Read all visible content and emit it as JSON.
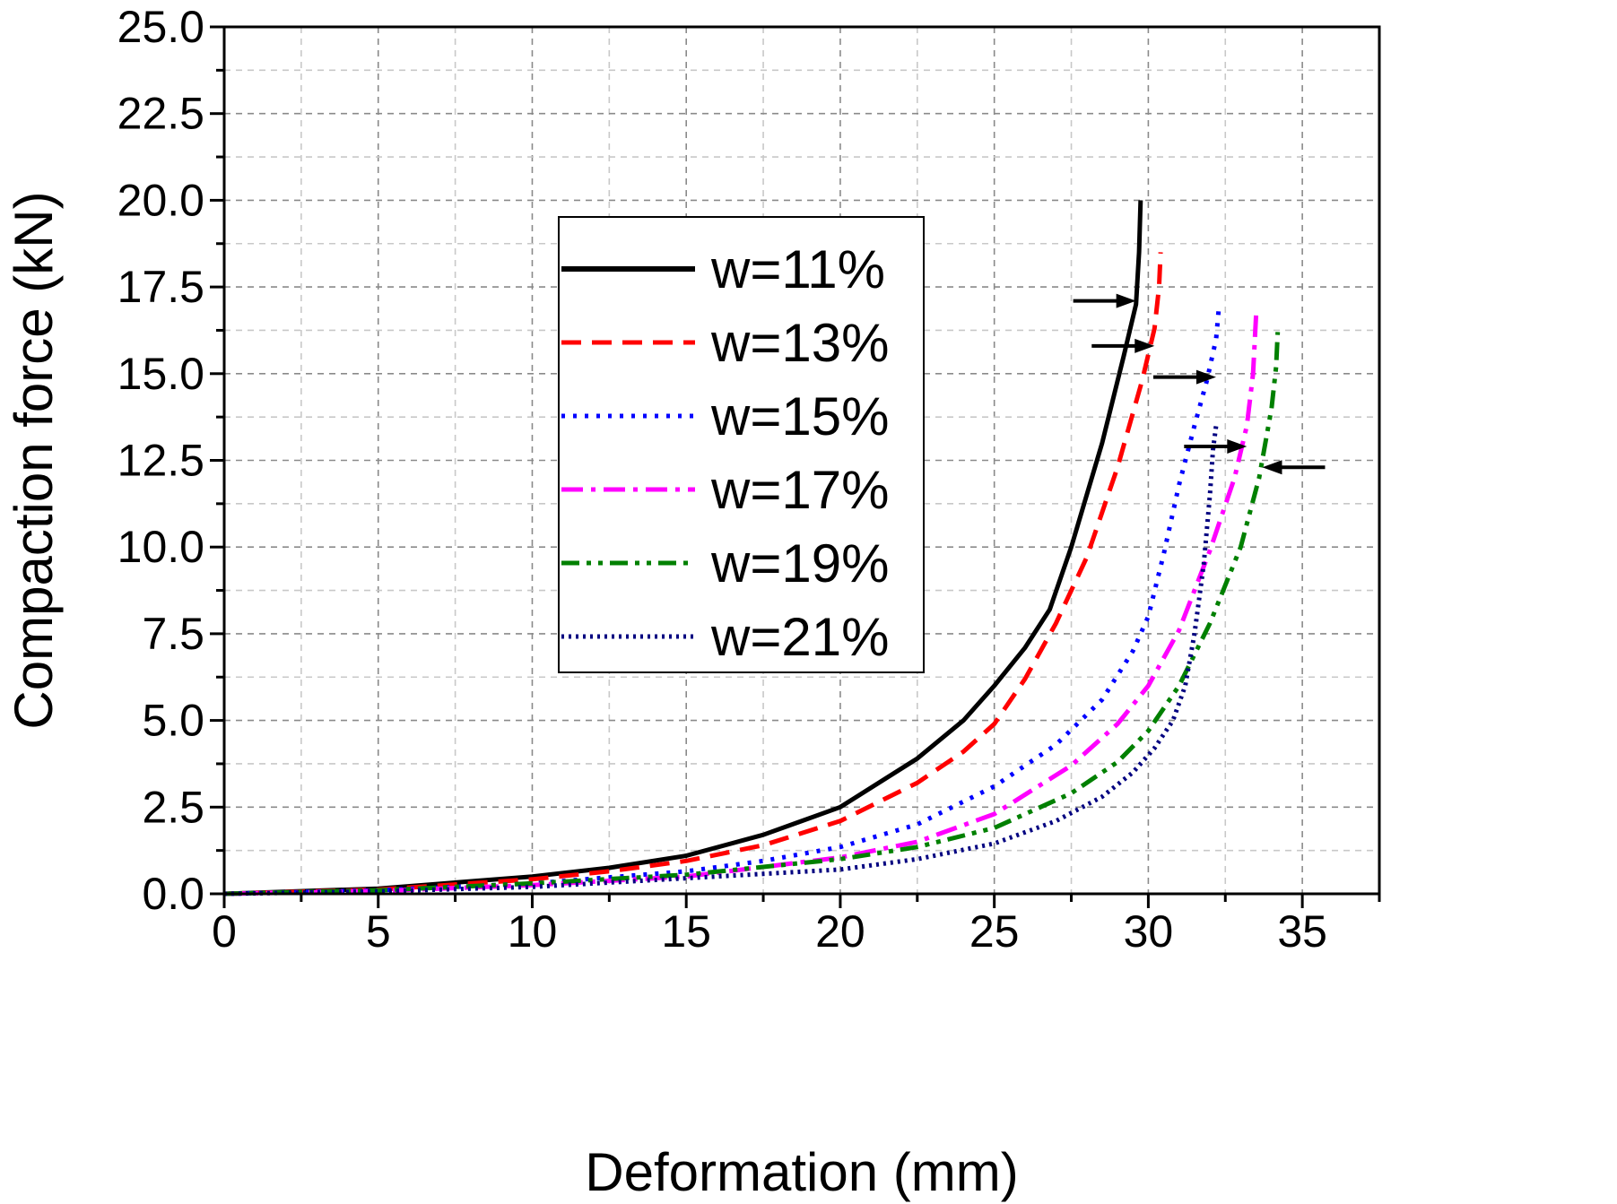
{
  "chart_data": {
    "type": "line",
    "title": "",
    "xlabel": "Deformation (mm)",
    "ylabel": "Compaction force (kN)",
    "xlim": [
      0,
      37.5
    ],
    "ylim": [
      0,
      25
    ],
    "xticks": [
      "0",
      "5",
      "10",
      "15",
      "20",
      "25",
      "30",
      "35"
    ],
    "yticks": [
      "0.0",
      "2.5",
      "5.0",
      "7.5",
      "10.0",
      "12.5",
      "15.0",
      "17.5",
      "20.0",
      "22.5",
      "25.0"
    ],
    "grid": true,
    "legend_position": "upper-left-center",
    "series": [
      {
        "name": "w=11%",
        "color": "#000000",
        "dash": "solid",
        "x": [
          0,
          5,
          10,
          12.5,
          15,
          17.5,
          20,
          22.5,
          24,
          25,
          26,
          26.8,
          27.5,
          28.5,
          29.2,
          29.6,
          29.7,
          29.75
        ],
        "y": [
          0,
          0.15,
          0.5,
          0.75,
          1.1,
          1.7,
          2.5,
          3.9,
          5.0,
          6.0,
          7.1,
          8.2,
          10.0,
          13.0,
          15.5,
          17.0,
          18.5,
          20.0
        ]
      },
      {
        "name": "w=13%",
        "color": "#ff0000",
        "dash": "dashed",
        "x": [
          0,
          5,
          10,
          12.5,
          15,
          17.5,
          20,
          22.5,
          24,
          25,
          26,
          27,
          28,
          29,
          29.8,
          30.2,
          30.35,
          30.4
        ],
        "y": [
          0,
          0.12,
          0.42,
          0.65,
          0.95,
          1.4,
          2.1,
          3.2,
          4.1,
          4.9,
          6.2,
          7.8,
          9.7,
          12.3,
          14.8,
          16.3,
          17.5,
          18.5
        ]
      },
      {
        "name": "w=15%",
        "color": "#0000ff",
        "dash": "dotted",
        "x": [
          0,
          5,
          10,
          15,
          17.5,
          20,
          22.5,
          25,
          27,
          28.5,
          29.5,
          30,
          30.5,
          31,
          31.5,
          31.9,
          32.2,
          32.3
        ],
        "y": [
          0,
          0.1,
          0.3,
          0.65,
          0.95,
          1.35,
          2.0,
          3.1,
          4.3,
          5.6,
          7.0,
          8.0,
          9.8,
          11.8,
          13.5,
          14.8,
          16.0,
          17.0
        ]
      },
      {
        "name": "w=17%",
        "color": "#ff00ff",
        "dash": "dashdot",
        "x": [
          0,
          5,
          10,
          15,
          20,
          22.5,
          25,
          27.5,
          29,
          30,
          31,
          32,
          32.8,
          33.2,
          33.4,
          33.5
        ],
        "y": [
          0,
          0.08,
          0.25,
          0.5,
          1.05,
          1.5,
          2.3,
          3.7,
          4.9,
          6.0,
          7.6,
          9.9,
          12.0,
          13.5,
          15.0,
          16.7
        ]
      },
      {
        "name": "w=19%",
        "color": "#008000",
        "dash": "dashdotdot",
        "x": [
          0,
          5,
          10,
          15,
          20,
          22.5,
          25,
          27.5,
          29,
          30,
          31,
          32,
          33,
          33.6,
          34,
          34.15,
          34.2
        ],
        "y": [
          0,
          0.1,
          0.3,
          0.55,
          1.0,
          1.35,
          1.9,
          2.9,
          3.8,
          4.7,
          6.0,
          7.8,
          10.0,
          12.0,
          14.0,
          15.2,
          16.2
        ]
      },
      {
        "name": "w=21%",
        "color": "#000080",
        "dash": "shortdot",
        "x": [
          0,
          5,
          10,
          15,
          20,
          22.5,
          25,
          27,
          28.5,
          29.5,
          30.2,
          30.8,
          31.2,
          31.5,
          31.8,
          32,
          32.1,
          32.2
        ],
        "y": [
          0,
          0.07,
          0.2,
          0.45,
          0.7,
          1.0,
          1.45,
          2.1,
          2.8,
          3.5,
          4.2,
          5.0,
          6.0,
          7.5,
          9.5,
          11.5,
          12.8,
          13.5
        ]
      }
    ],
    "annotations": [
      {
        "type": "arrow",
        "direction": "right",
        "target_x": 29.6,
        "target_y": 17.1
      },
      {
        "type": "arrow",
        "direction": "right",
        "target_x": 30.2,
        "target_y": 15.8
      },
      {
        "type": "arrow",
        "direction": "right",
        "target_x": 32.2,
        "target_y": 14.9
      },
      {
        "type": "arrow",
        "direction": "right",
        "target_x": 33.2,
        "target_y": 12.9
      },
      {
        "type": "arrow",
        "direction": "left",
        "target_x": 33.7,
        "target_y": 12.3
      }
    ]
  }
}
